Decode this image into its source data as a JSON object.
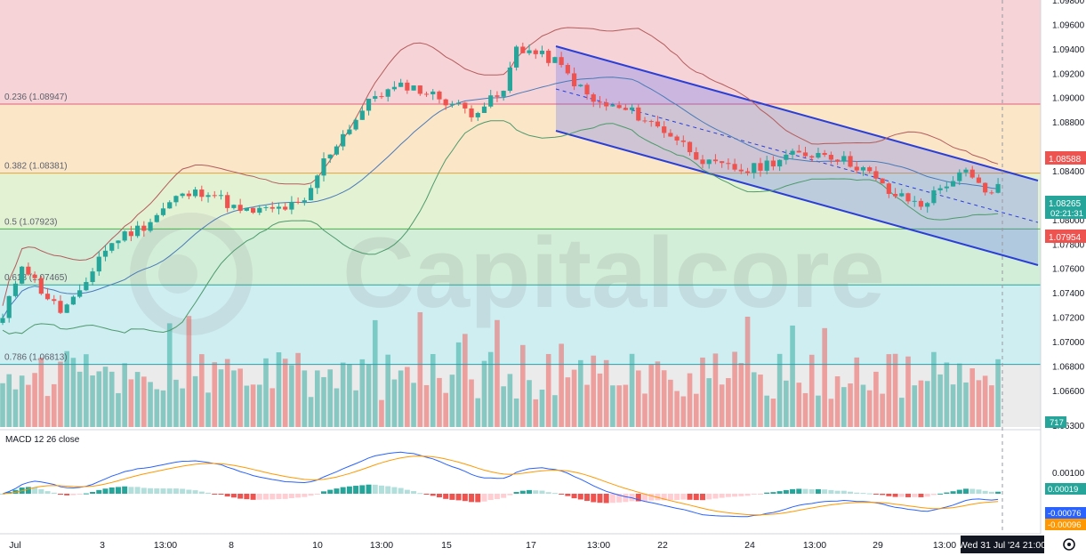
{
  "chart_data": {
    "type": "candlestick",
    "watermark": "Capitalcore",
    "price_axis": {
      "ticks": [
        "1.09800",
        "1.09600",
        "1.09400",
        "1.09200",
        "1.09000",
        "1.08800",
        "1.08400",
        "1.08000",
        "1.07800",
        "1.07600",
        "1.07400",
        "1.07200",
        "1.07000",
        "1.06800",
        "1.06600",
        "1.06300"
      ],
      "range": [
        1.063,
        1.098
      ]
    },
    "x_axis": {
      "labels": [
        "Jul",
        "3",
        "13:00",
        "8",
        "10",
        "13:00",
        "15",
        "17",
        "13:00",
        "22",
        "24",
        "13:00",
        "29",
        "13:00"
      ],
      "cursor_label": "Wed 31 Jul '24   21:00"
    },
    "fibonacci": [
      {
        "label": "0.236 (1.08947)",
        "price": 1.08947
      },
      {
        "label": "0.382 (1.08381)",
        "price": 1.08381
      },
      {
        "label": "0.5 (1.07923)",
        "price": 1.07923
      },
      {
        "label": "0.618 (1.07465)",
        "price": 1.07465
      },
      {
        "label": "0.786 (1.06813)",
        "price": 1.06813
      }
    ],
    "price_badges": [
      {
        "value": "1.08588",
        "color": "#ef5350"
      },
      {
        "value": "1.08265",
        "sub": "02:21:31",
        "color": "#26a69a"
      },
      {
        "value": "1.07954",
        "color": "#ef5350"
      }
    ],
    "volume_badge": "717",
    "indicators": [
      "Bollinger Bands",
      "Volume",
      "Descending Channel",
      "MACD 12 26 close"
    ],
    "channel": {
      "from": "Jul 18",
      "to": "Jul 31"
    },
    "macd": {
      "title": "MACD 12 26 close",
      "ticks": [
        "0.00100"
      ],
      "badges": [
        {
          "value": "0.00019",
          "color": "#26a69a"
        },
        {
          "value": "-0.00076",
          "color": "#2962ff"
        },
        {
          "value": "-0.00096",
          "color": "#ff9800"
        }
      ]
    },
    "colors": {
      "up": "#26a69a",
      "down": "#ef5350",
      "bb": "#b45c5c",
      "basis": "#4a7ab8",
      "lower": "#4c9a6a",
      "channel": "#2b3fd6",
      "macd": "#2962ff",
      "signal": "#ff9800"
    }
  }
}
